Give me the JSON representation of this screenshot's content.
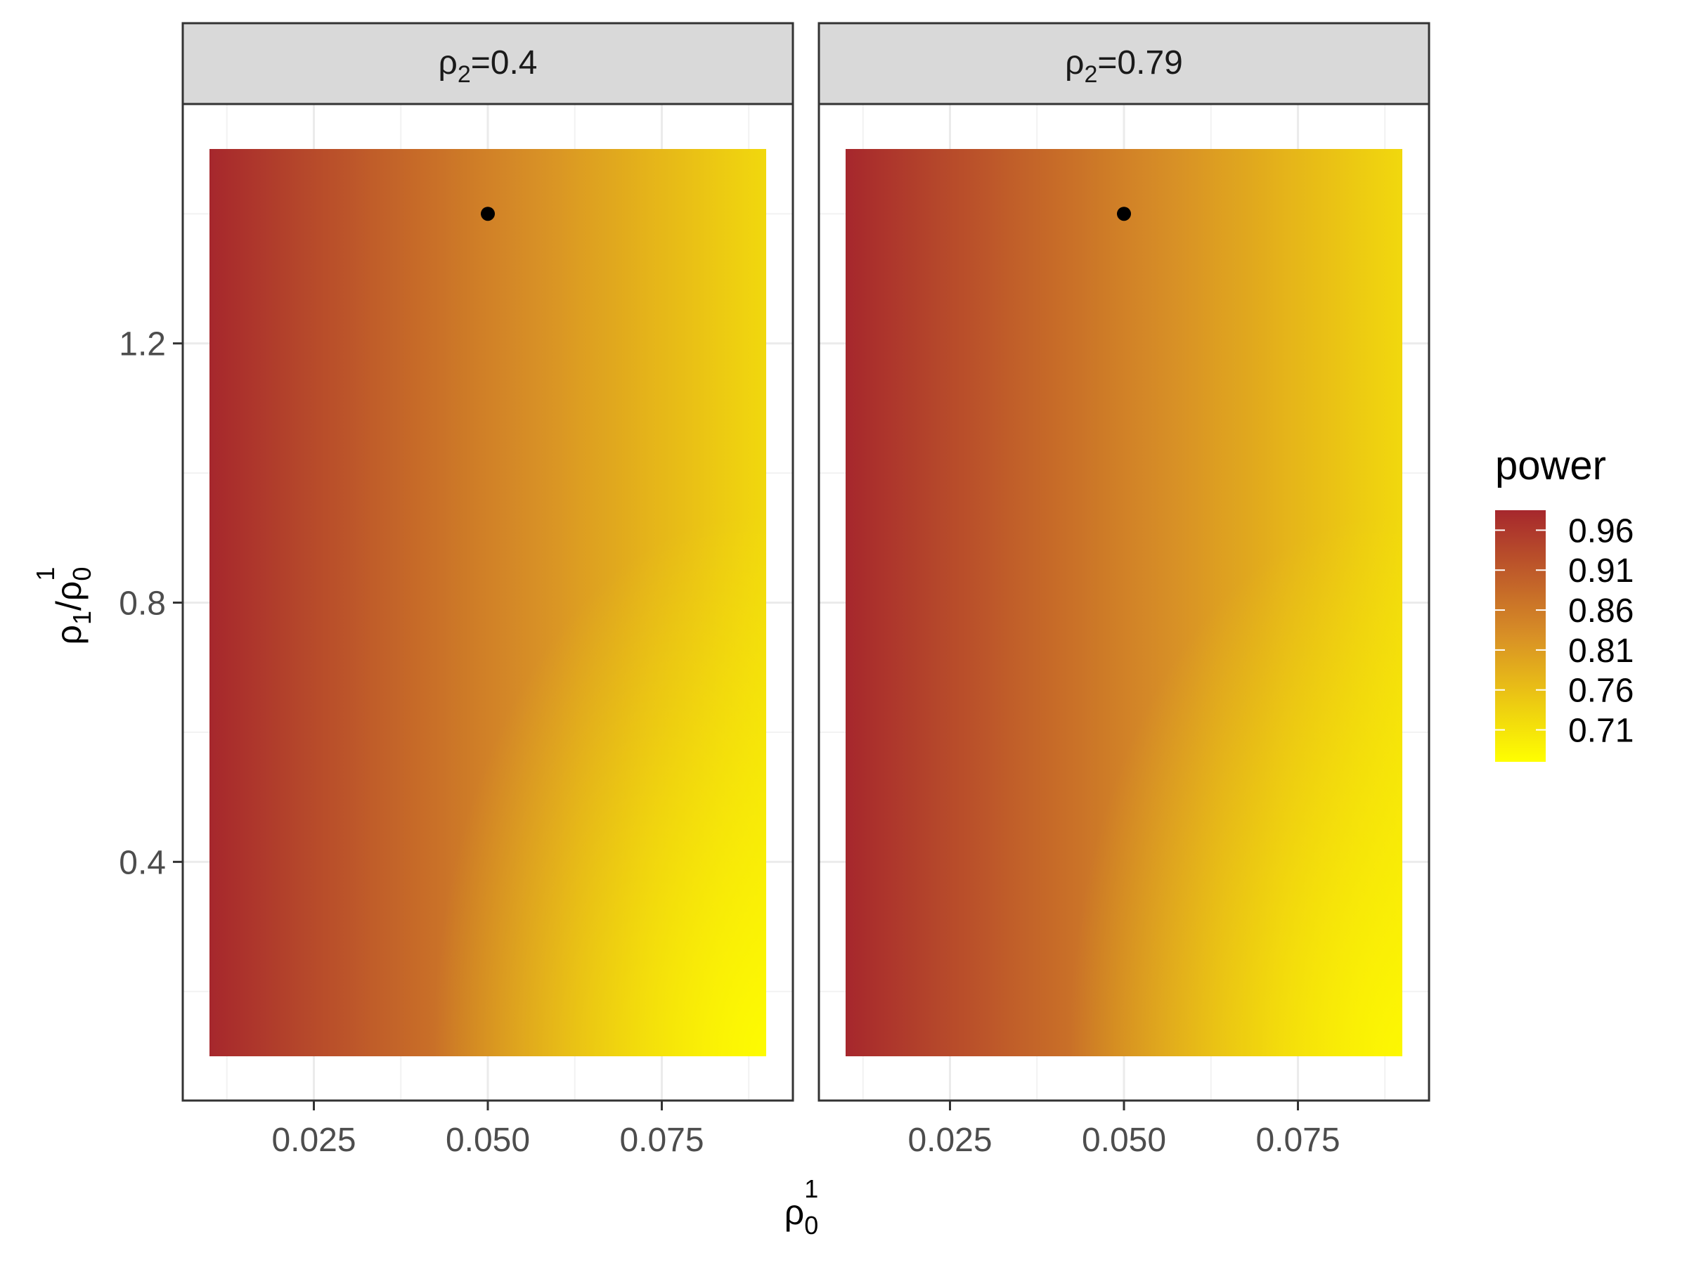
{
  "chart_data": {
    "type": "heatmap",
    "x_range": [
      0.01,
      0.09
    ],
    "y_range": [
      0.1,
      1.5
    ],
    "xlabel": {
      "base": "ρ",
      "sub": "0",
      "sup": "1"
    },
    "ylabel": {
      "num_base": "ρ",
      "num_sub": "1",
      "slash": "/",
      "den_base": "ρ",
      "den_sub": "0",
      "den_sup": "1"
    },
    "x_ticks": [
      {
        "value": 0.025,
        "label": "0.025"
      },
      {
        "value": 0.05,
        "label": "0.050"
      },
      {
        "value": 0.075,
        "label": "0.075"
      }
    ],
    "y_ticks": [
      {
        "value": 0.4,
        "label": "0.4"
      },
      {
        "value": 0.8,
        "label": "0.8"
      },
      {
        "value": 1.2,
        "label": "1.2"
      }
    ],
    "panels": [
      {
        "strip": {
          "base": "ρ",
          "sub": "2",
          "rest": "=0.4"
        },
        "power_left": 0.985,
        "power_right_top": 0.725,
        "power_right_bottom": 0.67,
        "point": {
          "x": 0.05,
          "y": 1.4
        }
      },
      {
        "strip": {
          "base": "ρ",
          "sub": "2",
          "rest": "=0.79"
        },
        "power_left": 0.985,
        "power_right_top": 0.725,
        "power_right_bottom": 0.675,
        "point": {
          "x": 0.05,
          "y": 1.4
        }
      }
    ],
    "legend": {
      "title": "power",
      "position": "right",
      "low_color": "#ffff00",
      "mid_color": "#d89026",
      "high_color": "#a6272d",
      "range": [
        0.67,
        0.985
      ],
      "ticks": [
        {
          "value": 0.96,
          "label": "0.96"
        },
        {
          "value": 0.91,
          "label": "0.91"
        },
        {
          "value": 0.86,
          "label": "0.86"
        },
        {
          "value": 0.81,
          "label": "0.81"
        },
        {
          "value": 0.76,
          "label": "0.76"
        },
        {
          "value": 0.71,
          "label": "0.71"
        }
      ]
    },
    "grid": true
  }
}
